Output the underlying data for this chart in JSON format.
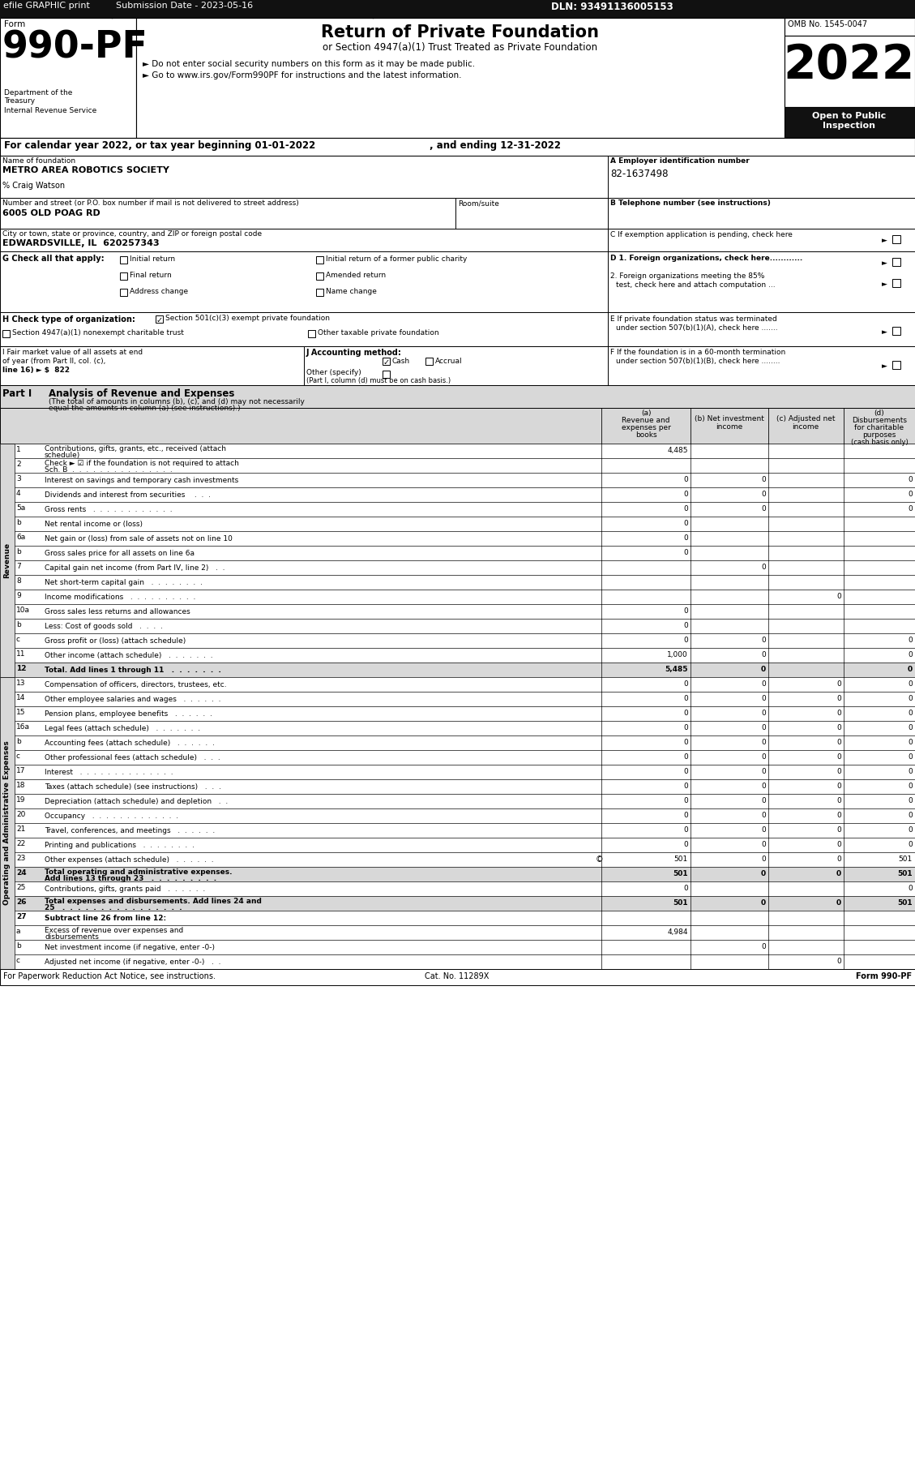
{
  "efile_header": "efile GRAPHIC print",
  "submission_date": "Submission Date - 2023-05-16",
  "dln": "DLN: 93491136005153",
  "form_number": "990-PF",
  "form_label": "Form",
  "title": "Return of Private Foundation",
  "subtitle": "or Section 4947(a)(1) Trust Treated as Private Foundation",
  "bullet1": "► Do not enter social security numbers on this form as it may be made public.",
  "bullet2": "► Go to www.irs.gov/Form990PF for instructions and the latest information.",
  "omb": "OMB No. 1545-0047",
  "year": "2022",
  "calendar_line1": "For calendar year 2022, or tax year beginning 01-01-2022",
  "calendar_line2": ", and ending 12-31-2022",
  "name_label": "Name of foundation",
  "name_value": "METRO AREA ROBOTICS SOCIETY",
  "care_of": "% Craig Watson",
  "address_label": "Number and street (or P.O. box number if mail is not delivered to street address)",
  "address_value": "6005 OLD POAG RD",
  "roomsuite_label": "Room/suite",
  "city_label": "City or town, state or province, country, and ZIP or foreign postal code",
  "city_value": "EDWARDSVILLE, IL  620257343",
  "ein_label": "A Employer identification number",
  "ein_value": "82-1637498",
  "phone_label": "B Telephone number (see instructions)",
  "exemption_label": "C If exemption application is pending, check here",
  "d1_label": "D 1. Foreign organizations, check here............",
  "d2_line1": "2. Foreign organizations meeting the 85%",
  "d2_line2": "test, check here and attach computation ...",
  "e_line1": "E If private foundation status was terminated",
  "e_line2": "under section 507(b)(1)(A), check here .......",
  "f_line1": "F If the foundation is in a 60-month termination",
  "f_line2": "under section 507(b)(1)(B), check here ........",
  "i_line1": "I Fair market value of all assets at end",
  "i_line2": "of year (from Part II, col. (c),",
  "i_line3": "line 16) ► $  822",
  "j_label": "J Accounting method:",
  "j_cash": "Cash",
  "j_accrual": "Accrual",
  "j_other": "Other (specify)",
  "j_note": "(Part I, column (d) must be on cash basis.)",
  "part1_title": "Part I",
  "part1_header": "Analysis of Revenue and Expenses",
  "part1_sub1": "(The total of amounts in columns (b), (c), and (d) may not necessarily",
  "part1_sub2": "equal the amounts in column (a) (see instructions).)",
  "col_a1": "(a)",
  "col_a2": "Revenue and",
  "col_a3": "expenses per",
  "col_a4": "books",
  "col_b1": "(b) Net investment",
  "col_b2": "income",
  "col_c1": "(c) Adjusted net",
  "col_c2": "income",
  "col_d1": "(d)",
  "col_d2": "Disbursements",
  "col_d3": "for charitable",
  "col_d4": "purposes",
  "col_d5": "(cash basis only)",
  "rows": [
    {
      "num": "1",
      "label1": "Contributions, gifts, grants, etc., received (attach",
      "label2": "schedule)",
      "a": "4,485",
      "b": "",
      "c": "",
      "d": "",
      "shaded": false
    },
    {
      "num": "2",
      "label1": "Check ► ☑ if the foundation is not required to attach",
      "label2": "Sch. B  .  .  .  .  .  .  .  .  .  .  .  .  .  .  .",
      "a": "",
      "b": "",
      "c": "",
      "d": "",
      "shaded": false
    },
    {
      "num": "3",
      "label1": "Interest on savings and temporary cash investments",
      "label2": "",
      "a": "0",
      "b": "0",
      "c": "",
      "d": "0",
      "shaded": false
    },
    {
      "num": "4",
      "label1": "Dividends and interest from securities    .  .  .",
      "label2": "",
      "a": "0",
      "b": "0",
      "c": "",
      "d": "0",
      "shaded": false
    },
    {
      "num": "5a",
      "label1": "Gross rents   .  .  .  .  .  .  .  .  .  .  .  .",
      "label2": "",
      "a": "0",
      "b": "0",
      "c": "",
      "d": "0",
      "shaded": false
    },
    {
      "num": "b",
      "label1": "Net rental income or (loss)",
      "label2": "",
      "a": "0",
      "b": "",
      "c": "",
      "d": "",
      "shaded": false
    },
    {
      "num": "6a",
      "label1": "Net gain or (loss) from sale of assets not on line 10",
      "label2": "",
      "a": "0",
      "b": "",
      "c": "",
      "d": "",
      "shaded": false
    },
    {
      "num": "b",
      "label1": "Gross sales price for all assets on line 6a",
      "label2": "",
      "a": "0",
      "b": "",
      "c": "",
      "d": "",
      "shaded": false
    },
    {
      "num": "7",
      "label1": "Capital gain net income (from Part IV, line 2)   .  .",
      "label2": "",
      "a": "",
      "b": "0",
      "c": "",
      "d": "",
      "shaded": false
    },
    {
      "num": "8",
      "label1": "Net short-term capital gain   .  .  .  .  .  .  .  .",
      "label2": "",
      "a": "",
      "b": "",
      "c": "",
      "d": "",
      "shaded": false
    },
    {
      "num": "9",
      "label1": "Income modifications   .  .  .  .  .  .  .  .  .  .",
      "label2": "",
      "a": "",
      "b": "",
      "c": "0",
      "d": "",
      "shaded": false
    },
    {
      "num": "10a",
      "label1": "Gross sales less returns and allowances",
      "label2": "",
      "a": "0",
      "b": "",
      "c": "",
      "d": "",
      "shaded": false
    },
    {
      "num": "b",
      "label1": "Less: Cost of goods sold   .  .  .  .",
      "label2": "",
      "a": "0",
      "b": "",
      "c": "",
      "d": "",
      "shaded": false
    },
    {
      "num": "c",
      "label1": "Gross profit or (loss) (attach schedule)",
      "label2": "",
      "a": "0",
      "b": "0",
      "c": "",
      "d": "0",
      "shaded": false
    },
    {
      "num": "11",
      "label1": "Other income (attach schedule)   .  .  .  .  .  .  .",
      "label2": "",
      "a": "1,000",
      "b": "0",
      "c": "",
      "d": "0",
      "shaded": false
    },
    {
      "num": "12",
      "label1": "Total. Add lines 1 through 11   .  .  .  .  .  .  .",
      "label2": "",
      "a": "5,485",
      "b": "0",
      "c": "",
      "d": "0",
      "shaded": true,
      "bold": true
    },
    {
      "num": "13",
      "label1": "Compensation of officers, directors, trustees, etc.",
      "label2": "",
      "a": "0",
      "b": "0",
      "c": "0",
      "d": "0",
      "shaded": false
    },
    {
      "num": "14",
      "label1": "Other employee salaries and wages   .  .  .  .  .  .",
      "label2": "",
      "a": "0",
      "b": "0",
      "c": "0",
      "d": "0",
      "shaded": false
    },
    {
      "num": "15",
      "label1": "Pension plans, employee benefits   .  .  .  .  .  .",
      "label2": "",
      "a": "0",
      "b": "0",
      "c": "0",
      "d": "0",
      "shaded": false
    },
    {
      "num": "16a",
      "label1": "Legal fees (attach schedule)   .  .  .  .  .  .  .",
      "label2": "",
      "a": "0",
      "b": "0",
      "c": "0",
      "d": "0",
      "shaded": false
    },
    {
      "num": "b",
      "label1": "Accounting fees (attach schedule)   .  .  .  .  .  .",
      "label2": "",
      "a": "0",
      "b": "0",
      "c": "0",
      "d": "0",
      "shaded": false
    },
    {
      "num": "c",
      "label1": "Other professional fees (attach schedule)   .  .  .",
      "label2": "",
      "a": "0",
      "b": "0",
      "c": "0",
      "d": "0",
      "shaded": false
    },
    {
      "num": "17",
      "label1": "Interest   .  .  .  .  .  .  .  .  .  .  .  .  .  .",
      "label2": "",
      "a": "0",
      "b": "0",
      "c": "0",
      "d": "0",
      "shaded": false
    },
    {
      "num": "18",
      "label1": "Taxes (attach schedule) (see instructions)   .  .  .",
      "label2": "",
      "a": "0",
      "b": "0",
      "c": "0",
      "d": "0",
      "shaded": false
    },
    {
      "num": "19",
      "label1": "Depreciation (attach schedule) and depletion   .  .",
      "label2": "",
      "a": "0",
      "b": "0",
      "c": "0",
      "d": "0",
      "shaded": false
    },
    {
      "num": "20",
      "label1": "Occupancy   .  .  .  .  .  .  .  .  .  .  .  .  .",
      "label2": "",
      "a": "0",
      "b": "0",
      "c": "0",
      "d": "0",
      "shaded": false
    },
    {
      "num": "21",
      "label1": "Travel, conferences, and meetings   .  .  .  .  .  .",
      "label2": "",
      "a": "0",
      "b": "0",
      "c": "0",
      "d": "0",
      "shaded": false
    },
    {
      "num": "22",
      "label1": "Printing and publications   .  .  .  .  .  .  .  .",
      "label2": "",
      "a": "0",
      "b": "0",
      "c": "0",
      "d": "0",
      "shaded": false
    },
    {
      "num": "23",
      "label1": "Other expenses (attach schedule)   .  .  .  .  .  .",
      "label2": "",
      "a": "501",
      "b": "0",
      "c": "0",
      "d": "501",
      "shaded": false,
      "icon": true
    },
    {
      "num": "24",
      "label1": "Total operating and administrative expenses.",
      "label2": "Add lines 13 through 23   .  .  .  .  .  .  .  .  .",
      "a": "501",
      "b": "0",
      "c": "0",
      "d": "501",
      "shaded": true,
      "bold": true
    },
    {
      "num": "25",
      "label1": "Contributions, gifts, grants paid   .  .  .  .  .  .",
      "label2": "",
      "a": "0",
      "b": "",
      "c": "",
      "d": "0",
      "shaded": false
    },
    {
      "num": "26",
      "label1": "Total expenses and disbursements. Add lines 24 and",
      "label2": "25   .  .  .  .  .  .  .  .  .  .  .  .  .  .  .  .",
      "a": "501",
      "b": "0",
      "c": "0",
      "d": "501",
      "shaded": true,
      "bold": true
    },
    {
      "num": "27",
      "label1": "Subtract line 26 from line 12:",
      "label2": "",
      "a": "",
      "b": "",
      "c": "",
      "d": "",
      "shaded": false,
      "bold": true
    },
    {
      "num": "a",
      "label1": "Excess of revenue over expenses and",
      "label2": "disbursements",
      "a": "4,984",
      "b": "",
      "c": "",
      "d": "",
      "shaded": false
    },
    {
      "num": "b",
      "label1": "Net investment income (if negative, enter -0-)",
      "label2": "",
      "a": "",
      "b": "0",
      "c": "",
      "d": "",
      "shaded": false
    },
    {
      "num": "c",
      "label1": "Adjusted net income (if negative, enter -0-)   .  .",
      "label2": "",
      "a": "",
      "b": "",
      "c": "0",
      "d": "",
      "shaded": false
    }
  ],
  "revenue_section_rows": 16,
  "expense_section_rows": 20,
  "footer_left": "For Paperwork Reduction Act Notice, see instructions.",
  "footer_cat": "Cat. No. 11289X",
  "footer_form": "Form 990-PF",
  "bg": "#ffffff",
  "shade_color": "#d8d8d8",
  "header_shade": "#c8c8c8"
}
